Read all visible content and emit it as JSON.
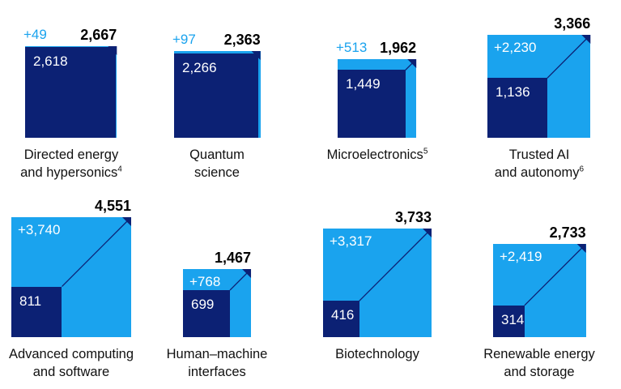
{
  "chart_data": {
    "type": "area",
    "title": "",
    "colors": {
      "existing": "#0c2174",
      "increase": "#1aa3ee",
      "total_text": "#000000",
      "label_text": "#111111"
    },
    "categories": [
      {
        "name": "Directed energy and hypersonics",
        "label_lines": [
          "Directed energy",
          "and hypersonics"
        ],
        "footnote": "4",
        "base": 2618,
        "increase": 49,
        "total": 2667,
        "base_label": "2,618",
        "increase_label": "+49",
        "total_label": "2,667"
      },
      {
        "name": "Quantum science",
        "label_lines": [
          "Quantum",
          "science"
        ],
        "footnote": "",
        "base": 2266,
        "increase": 97,
        "total": 2363,
        "base_label": "2,266",
        "increase_label": "+97",
        "total_label": "2,363"
      },
      {
        "name": "Microelectronics",
        "label_lines": [
          "Microelectronics"
        ],
        "footnote": "5",
        "base": 1449,
        "increase": 513,
        "total": 1962,
        "base_label": "1,449",
        "increase_label": "+513",
        "total_label": "1,962"
      },
      {
        "name": "Trusted AI and autonomy",
        "label_lines": [
          "Trusted AI",
          "and autonomy"
        ],
        "footnote": "6",
        "base": 1136,
        "increase": 2230,
        "total": 3366,
        "base_label": "1,136",
        "increase_label": "+2,230",
        "total_label": "3,366"
      },
      {
        "name": "Advanced computing and software",
        "label_lines": [
          "Advanced computing",
          "and software"
        ],
        "footnote": "",
        "base": 811,
        "increase": 3740,
        "total": 4551,
        "base_label": "811",
        "increase_label": "+3,740",
        "total_label": "4,551"
      },
      {
        "name": "Human–machine interfaces",
        "label_lines": [
          "Human–machine",
          "interfaces"
        ],
        "footnote": "",
        "base": 699,
        "increase": 768,
        "total": 1467,
        "base_label": "699",
        "increase_label": "+768",
        "total_label": "1,467"
      },
      {
        "name": "Biotechnology",
        "label_lines": [
          "Biotechnology"
        ],
        "footnote": "",
        "base": 416,
        "increase": 3317,
        "total": 3733,
        "base_label": "416",
        "increase_label": "+3,317",
        "total_label": "3,733"
      },
      {
        "name": "Renewable energy and storage",
        "label_lines": [
          "Renewable energy",
          "and storage"
        ],
        "footnote": "",
        "base": 314,
        "increase": 2419,
        "total": 2733,
        "base_label": "314",
        "increase_label": "+2,419",
        "total_label": "2,733"
      }
    ]
  }
}
